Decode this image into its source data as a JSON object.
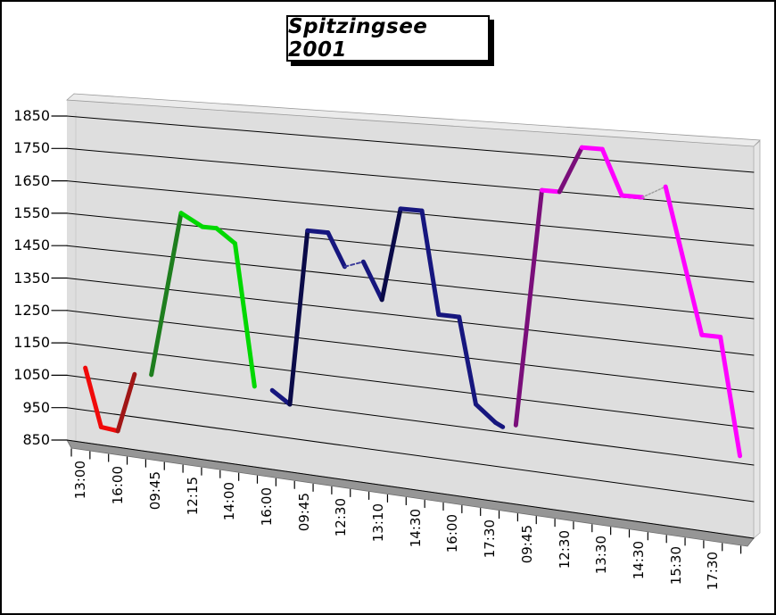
{
  "title": "Spitzingsee 2001",
  "chart_data": {
    "type": "line",
    "style": "3d-ribbon",
    "title": "Spitzingsee 2001",
    "ylabel": "",
    "xlabel": "",
    "y_axis": {
      "min": 850,
      "max": 1850,
      "step": 100,
      "tick_labels": [
        "1850",
        "1750",
        "1650",
        "1550",
        "1450",
        "1350",
        "1250",
        "1150",
        "1050",
        "950",
        "850"
      ]
    },
    "x_axis": {
      "tick_count": 37,
      "tick_labels": [
        "13:00",
        "16:00",
        "09:45",
        "12:15",
        "14:00",
        "16:00",
        "09:45",
        "12:30",
        "13:10",
        "14:30",
        "16:00",
        "17:30",
        "09:45",
        "12:30",
        "13:30",
        "14:30",
        "15:30",
        "17:30"
      ]
    },
    "grid": "on",
    "legend": "none",
    "wall_color": "#DEDEDE",
    "floor_color": "#969696",
    "series": [
      {
        "id": "tour-1-red",
        "color_bright": "#F00A0A",
        "color_dark": "#A01616",
        "points": [
          {
            "t": 0.75,
            "alt": 1080
          },
          {
            "t": 1.6,
            "alt": 905
          },
          {
            "t": 2.5,
            "alt": 900
          },
          {
            "t": 3.4,
            "alt": 1080
          }
        ],
        "special_segments": []
      },
      {
        "id": "tour-2-green",
        "color_bright": "#00D800",
        "color_dark": "#1E7E1E",
        "points": [
          {
            "t": 4.3,
            "alt": 1085
          },
          {
            "t": 5.9,
            "alt": 1585
          },
          {
            "t": 7.05,
            "alt": 1550
          },
          {
            "t": 7.8,
            "alt": 1550
          },
          {
            "t": 8.8,
            "alt": 1510
          },
          {
            "t": 9.85,
            "alt": 1090
          }
        ],
        "special_segments": []
      },
      {
        "id": "tour-3-navy",
        "color_bright": "#16167E",
        "color_dark": "#0A0A48",
        "points": [
          {
            "t": 10.8,
            "alt": 1085
          },
          {
            "t": 11.75,
            "alt": 1050
          },
          {
            "t": 12.7,
            "alt": 1570
          },
          {
            "t": 13.8,
            "alt": 1570
          },
          {
            "t": 14.7,
            "alt": 1475
          },
          {
            "t": 15.7,
            "alt": 1495
          },
          {
            "t": 16.7,
            "alt": 1390
          },
          {
            "t": 17.7,
            "alt": 1660
          },
          {
            "t": 18.85,
            "alt": 1660
          },
          {
            "t": 19.75,
            "alt": 1365
          },
          {
            "t": 20.85,
            "alt": 1365
          },
          {
            "t": 21.75,
            "alt": 1120
          },
          {
            "t": 22.8,
            "alt": 1075
          },
          {
            "t": 23.2,
            "alt": 1065
          }
        ],
        "special_segments": [
          {
            "after_index": 4,
            "style": "thin-dash",
            "color": "#3A3A9A"
          }
        ]
      },
      {
        "id": "tour-4-magenta",
        "color_bright": "#FF00FF",
        "color_dark": "#7A0E7A",
        "points": [
          {
            "t": 23.9,
            "alt": 1075
          },
          {
            "t": 25.3,
            "alt": 1750
          },
          {
            "t": 26.25,
            "alt": 1750
          },
          {
            "t": 27.45,
            "alt": 1880
          },
          {
            "t": 28.55,
            "alt": 1880
          },
          {
            "t": 29.6,
            "alt": 1755
          },
          {
            "t": 30.7,
            "alt": 1755
          },
          {
            "t": 31.95,
            "alt": 1790
          },
          {
            "t": 33.9,
            "alt": 1390
          },
          {
            "t": 34.9,
            "alt": 1390
          },
          {
            "t": 35.95,
            "alt": 1070
          }
        ],
        "special_segments": [
          {
            "after_index": 6,
            "style": "dot-gray",
            "color": "#A0A0A0"
          }
        ]
      }
    ]
  }
}
